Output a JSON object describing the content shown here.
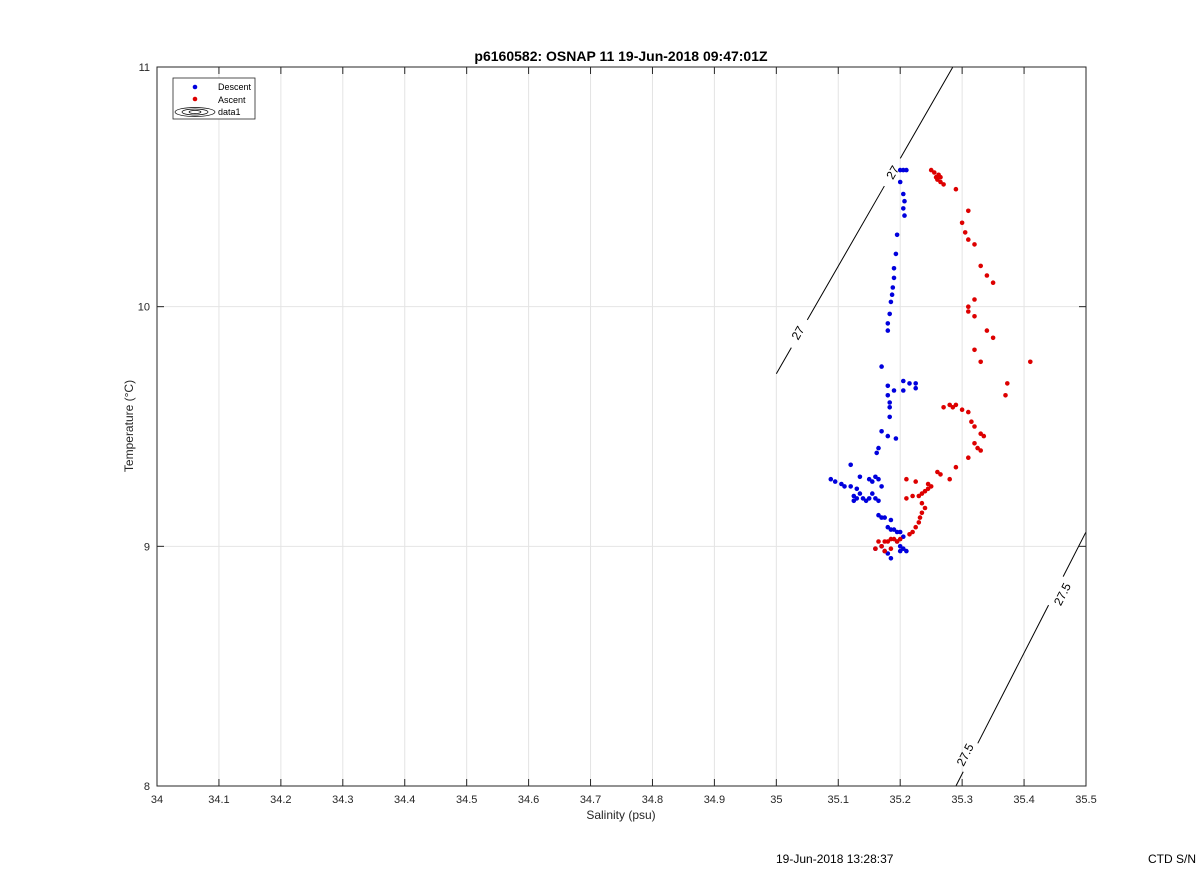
{
  "chart_data": {
    "type": "scatter",
    "title": "p6160582: OSNAP 11 19-Jun-2018 09:47:01Z",
    "xlabel": "Salinity (psu)",
    "ylabel": "Temperature (°C)",
    "xlim": [
      34,
      35.5
    ],
    "ylim": [
      8,
      11
    ],
    "x_ticks": [
      "34",
      "34.1",
      "34.2",
      "34.3",
      "34.4",
      "34.5",
      "34.6",
      "34.7",
      "34.8",
      "34.9",
      "35",
      "35.1",
      "35.2",
      "35.3",
      "35.4",
      "35.5"
    ],
    "y_ticks": [
      "8",
      "9",
      "10",
      "11"
    ],
    "grid": true,
    "legend": {
      "placement": "top-left",
      "entries": [
        "Descent",
        "Ascent",
        "data1"
      ]
    },
    "series": [
      {
        "name": "Descent",
        "color": "#0000dd",
        "points": [
          [
            35.2,
            10.57
          ],
          [
            35.205,
            10.57
          ],
          [
            35.21,
            10.57
          ],
          [
            35.2,
            10.52
          ],
          [
            35.205,
            10.47
          ],
          [
            35.207,
            10.44
          ],
          [
            35.205,
            10.41
          ],
          [
            35.207,
            10.38
          ],
          [
            35.195,
            10.3
          ],
          [
            35.193,
            10.22
          ],
          [
            35.19,
            10.16
          ],
          [
            35.19,
            10.12
          ],
          [
            35.188,
            10.08
          ],
          [
            35.187,
            10.05
          ],
          [
            35.185,
            10.02
          ],
          [
            35.183,
            9.97
          ],
          [
            35.18,
            9.93
          ],
          [
            35.18,
            9.9
          ],
          [
            35.17,
            9.75
          ],
          [
            35.18,
            9.67
          ],
          [
            35.18,
            9.63
          ],
          [
            35.183,
            9.6
          ],
          [
            35.183,
            9.58
          ],
          [
            35.183,
            9.54
          ],
          [
            35.19,
            9.65
          ],
          [
            35.205,
            9.65
          ],
          [
            35.205,
            9.69
          ],
          [
            35.215,
            9.68
          ],
          [
            35.225,
            9.68
          ],
          [
            35.225,
            9.66
          ],
          [
            35.17,
            9.48
          ],
          [
            35.18,
            9.46
          ],
          [
            35.193,
            9.45
          ],
          [
            35.165,
            9.41
          ],
          [
            35.162,
            9.39
          ],
          [
            35.088,
            9.28
          ],
          [
            35.095,
            9.27
          ],
          [
            35.105,
            9.26
          ],
          [
            35.11,
            9.25
          ],
          [
            35.12,
            9.25
          ],
          [
            35.13,
            9.24
          ],
          [
            35.125,
            9.21
          ],
          [
            35.125,
            9.19
          ],
          [
            35.13,
            9.2
          ],
          [
            35.135,
            9.22
          ],
          [
            35.14,
            9.2
          ],
          [
            35.145,
            9.19
          ],
          [
            35.15,
            9.2
          ],
          [
            35.155,
            9.22
          ],
          [
            35.16,
            9.2
          ],
          [
            35.165,
            9.19
          ],
          [
            35.12,
            9.34
          ],
          [
            35.135,
            9.29
          ],
          [
            35.15,
            9.28
          ],
          [
            35.155,
            9.27
          ],
          [
            35.16,
            9.29
          ],
          [
            35.165,
            9.28
          ],
          [
            35.17,
            9.25
          ],
          [
            35.165,
            9.13
          ],
          [
            35.17,
            9.12
          ],
          [
            35.175,
            9.12
          ],
          [
            35.185,
            9.11
          ],
          [
            35.18,
            9.08
          ],
          [
            35.185,
            9.07
          ],
          [
            35.19,
            9.07
          ],
          [
            35.195,
            9.06
          ],
          [
            35.2,
            9.06
          ],
          [
            35.205,
            9.04
          ],
          [
            35.195,
            9.02
          ],
          [
            35.2,
            9.0
          ],
          [
            35.205,
            8.99
          ],
          [
            35.21,
            8.98
          ],
          [
            35.18,
            8.97
          ],
          [
            35.185,
            8.95
          ],
          [
            35.175,
            8.98
          ],
          [
            35.16,
            8.99
          ],
          [
            35.17,
            9.0
          ],
          [
            35.2,
            8.98
          ]
        ]
      },
      {
        "name": "Ascent",
        "color": "#dd0000",
        "points": [
          [
            35.25,
            10.57
          ],
          [
            35.255,
            10.56
          ],
          [
            35.258,
            10.54
          ],
          [
            35.26,
            10.53
          ],
          [
            35.265,
            10.52
          ],
          [
            35.27,
            10.51
          ],
          [
            35.265,
            10.54
          ],
          [
            35.262,
            10.55
          ],
          [
            35.29,
            10.49
          ],
          [
            35.31,
            10.4
          ],
          [
            35.3,
            10.35
          ],
          [
            35.305,
            10.31
          ],
          [
            35.31,
            10.28
          ],
          [
            35.32,
            10.26
          ],
          [
            35.33,
            10.17
          ],
          [
            35.34,
            10.13
          ],
          [
            35.35,
            10.1
          ],
          [
            35.32,
            10.03
          ],
          [
            35.31,
            10.0
          ],
          [
            35.31,
            9.98
          ],
          [
            35.32,
            9.96
          ],
          [
            35.34,
            9.9
          ],
          [
            35.35,
            9.87
          ],
          [
            35.32,
            9.82
          ],
          [
            35.33,
            9.77
          ],
          [
            35.41,
            9.77
          ],
          [
            35.373,
            9.68
          ],
          [
            35.37,
            9.63
          ],
          [
            35.27,
            9.58
          ],
          [
            35.28,
            9.59
          ],
          [
            35.285,
            9.58
          ],
          [
            35.29,
            9.59
          ],
          [
            35.3,
            9.57
          ],
          [
            35.31,
            9.56
          ],
          [
            35.315,
            9.52
          ],
          [
            35.32,
            9.5
          ],
          [
            35.33,
            9.47
          ],
          [
            35.335,
            9.46
          ],
          [
            35.32,
            9.43
          ],
          [
            35.325,
            9.41
          ],
          [
            35.33,
            9.4
          ],
          [
            35.31,
            9.37
          ],
          [
            35.29,
            9.33
          ],
          [
            35.265,
            9.3
          ],
          [
            35.26,
            9.31
          ],
          [
            35.28,
            9.28
          ],
          [
            35.245,
            9.26
          ],
          [
            35.25,
            9.25
          ],
          [
            35.245,
            9.24
          ],
          [
            35.24,
            9.23
          ],
          [
            35.235,
            9.22
          ],
          [
            35.23,
            9.21
          ],
          [
            35.22,
            9.21
          ],
          [
            35.21,
            9.2
          ],
          [
            35.21,
            9.28
          ],
          [
            35.225,
            9.27
          ],
          [
            35.235,
            9.18
          ],
          [
            35.24,
            9.16
          ],
          [
            35.235,
            9.14
          ],
          [
            35.232,
            9.12
          ],
          [
            35.23,
            9.1
          ],
          [
            35.225,
            9.08
          ],
          [
            35.22,
            9.06
          ],
          [
            35.215,
            9.05
          ],
          [
            35.2,
            9.03
          ],
          [
            35.195,
            9.02
          ],
          [
            35.19,
            9.03
          ],
          [
            35.185,
            9.03
          ],
          [
            35.18,
            9.02
          ],
          [
            35.175,
            9.02
          ],
          [
            35.17,
            9.0
          ],
          [
            35.165,
            9.02
          ],
          [
            35.16,
            8.99
          ],
          [
            35.175,
            8.98
          ],
          [
            35.185,
            8.99
          ]
        ]
      }
    ],
    "contours": [
      {
        "level": "27",
        "color": "#000000",
        "line": [
          [
            35.0,
            9.72
          ],
          [
            35.285,
            11.0
          ]
        ],
        "labels": [
          [
            35.035,
            9.89
          ],
          [
            35.188,
            10.56
          ]
        ]
      },
      {
        "level": "27.5",
        "color": "#000000",
        "line": [
          [
            35.29,
            8.0
          ],
          [
            35.5,
            9.06
          ]
        ],
        "labels": [
          [
            35.305,
            8.13
          ],
          [
            35.462,
            8.8
          ]
        ]
      }
    ]
  },
  "footer": {
    "timestamp": "19-Jun-2018 13:28:37",
    "serial": "CTD S/N"
  }
}
